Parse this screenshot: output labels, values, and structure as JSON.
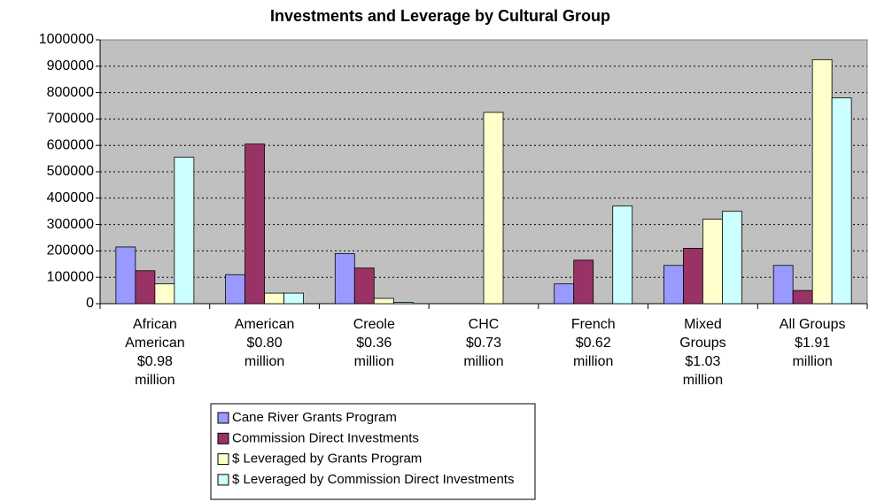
{
  "chart_data": {
    "type": "bar",
    "title": "Investments and Leverage by Cultural Group",
    "categories": [
      [
        "African",
        "American",
        "$0.98",
        "million"
      ],
      [
        "American",
        "$0.80",
        "million"
      ],
      [
        "Creole",
        "$0.36",
        "million"
      ],
      [
        "CHC",
        "$0.73",
        "million"
      ],
      [
        "French",
        "$0.62",
        "million"
      ],
      [
        "Mixed",
        "Groups",
        "$1.03",
        "million"
      ],
      [
        "All Groups",
        "$1.91",
        "million"
      ]
    ],
    "series": [
      {
        "name": "Cane River Grants Program",
        "color": "#9999ff",
        "values": [
          215000,
          110000,
          190000,
          0,
          75000,
          145000,
          145000
        ]
      },
      {
        "name": "Commission Direct Investments",
        "color": "#993366",
        "values": [
          125000,
          605000,
          135000,
          0,
          165000,
          210000,
          50000
        ]
      },
      {
        "name": "$ Leveraged by Grants Program",
        "color": "#ffffcc",
        "values": [
          75000,
          40000,
          20000,
          725000,
          0,
          320000,
          925000
        ]
      },
      {
        "name": "$ Leveraged by Commission Direct Investments",
        "color": "#ccffff",
        "values": [
          555000,
          40000,
          5000,
          0,
          370000,
          350000,
          780000
        ]
      }
    ],
    "ylim": [
      0,
      1000000
    ],
    "yticks": [
      0,
      100000,
      200000,
      300000,
      400000,
      500000,
      600000,
      700000,
      800000,
      900000,
      1000000
    ],
    "grid": true,
    "legend": "bottom"
  }
}
